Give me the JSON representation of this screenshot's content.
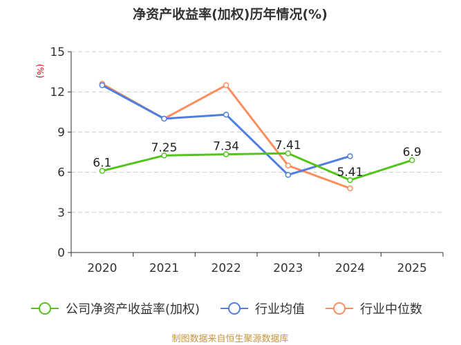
{
  "chart_data": {
    "type": "line",
    "title": "净资产收益率(加权)历年情况(%)",
    "ylabel": "(%)",
    "categories": [
      "2020",
      "2021",
      "2022",
      "2023",
      "2024",
      "2025"
    ],
    "ylim": [
      0,
      15
    ],
    "yticks": [
      0,
      3,
      6,
      9,
      12,
      15
    ],
    "grid": true,
    "legend_placement": "bottom",
    "series": [
      {
        "name": "公司净资产收益率(加权)",
        "color": "#52c41a",
        "values": [
          6.1,
          7.25,
          7.34,
          7.41,
          5.41,
          6.9
        ],
        "labels": [
          "6.1",
          "7.25",
          "7.34",
          "7.41",
          "5.41",
          "6.9"
        ]
      },
      {
        "name": "行业均值",
        "color": "#4e7fe0",
        "values": [
          12.5,
          10.0,
          10.3,
          5.8,
          7.2,
          null
        ]
      },
      {
        "name": "行业中位数",
        "color": "#ff8c5a",
        "values": [
          12.6,
          10.0,
          12.5,
          6.5,
          4.8,
          null
        ]
      }
    ]
  },
  "footer": "制图数据来自恒生聚源数据库"
}
